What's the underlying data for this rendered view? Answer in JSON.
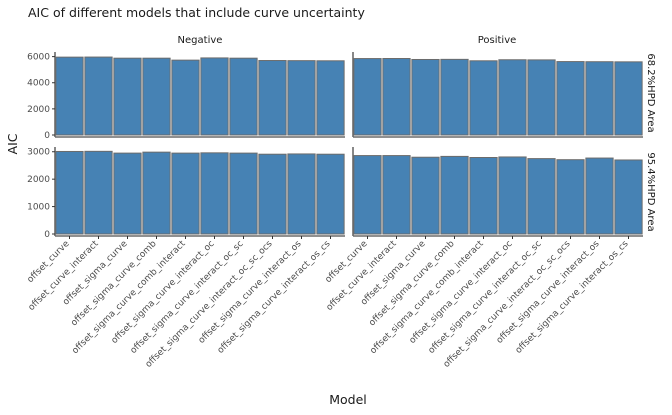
{
  "chart_data": {
    "type": "bar",
    "title": "AIC of different models that include curve uncertainty",
    "xlabel": "Model",
    "ylabel": "AIC",
    "categories": [
      "offset_curve",
      "offset_curve_interact",
      "offset_sigma_curve",
      "offset_sigma_curve_comb",
      "offset_sigma_curve_comb_interact",
      "offset_sigma_curve_interact_oc",
      "offset_sigma_curve_interact_oc_sc",
      "offset_sigma_curve_interact_oc_sc_ocs",
      "offset_sigma_curve_interact_os",
      "offset_sigma_curve_interact_os_cs"
    ],
    "facet_cols": [
      "Negative",
      "Positive"
    ],
    "facet_rows": [
      "68.2%HPD Area",
      "95.4%HPD Area"
    ],
    "panels": [
      {
        "col": "Negative",
        "row": "68.2%HPD Area",
        "ylim": [
          0,
          6200
        ],
        "yticks": [
          0,
          2000,
          4000,
          6000
        ],
        "values": [
          5960,
          5965,
          5880,
          5880,
          5730,
          5900,
          5880,
          5700,
          5690,
          5680
        ]
      },
      {
        "col": "Positive",
        "row": "68.2%HPD Area",
        "ylim": [
          0,
          6200
        ],
        "yticks": [
          0,
          2000,
          4000,
          6000
        ],
        "values": [
          5850,
          5855,
          5780,
          5790,
          5680,
          5760,
          5750,
          5620,
          5610,
          5600
        ]
      },
      {
        "col": "Negative",
        "row": "95.4%HPD Area",
        "ylim": [
          0,
          3100
        ],
        "yticks": [
          0,
          1000,
          2000,
          3000
        ],
        "values": [
          3010,
          3015,
          2950,
          2985,
          2950,
          2960,
          2950,
          2910,
          2920,
          2910
        ]
      },
      {
        "col": "Positive",
        "row": "95.4%HPD Area",
        "ylim": [
          0,
          3100
        ],
        "yticks": [
          0,
          1000,
          2000,
          3000
        ],
        "values": [
          2860,
          2860,
          2800,
          2830,
          2790,
          2810,
          2750,
          2710,
          2770,
          2700
        ]
      }
    ],
    "grid": false,
    "bar_color": "#4682b4"
  }
}
